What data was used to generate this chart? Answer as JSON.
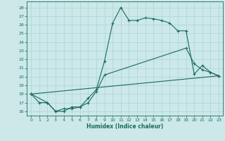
{
  "xlabel": "Humidex (Indice chaleur)",
  "bg_color": "#cce8e8",
  "line_color": "#1a6b5a",
  "grid_color": "#aad4d4",
  "ylim": [
    15.5,
    28.7
  ],
  "xlim": [
    -0.5,
    23.5
  ],
  "yticks": [
    16,
    17,
    18,
    19,
    20,
    21,
    22,
    23,
    24,
    25,
    26,
    27,
    28
  ],
  "xticks": [
    0,
    1,
    2,
    3,
    4,
    5,
    6,
    7,
    8,
    9,
    10,
    11,
    12,
    13,
    14,
    15,
    16,
    17,
    18,
    19,
    20,
    21,
    22,
    23
  ],
  "line1_x": [
    0,
    1,
    2,
    3,
    4,
    5,
    6,
    7,
    8,
    9,
    10,
    11,
    12,
    13,
    14,
    15,
    16,
    17,
    18,
    19,
    20,
    21,
    22,
    23
  ],
  "line1_y": [
    18,
    17,
    17,
    16,
    16,
    16.5,
    16.5,
    17.5,
    18.5,
    21.8,
    26.2,
    28,
    26.5,
    26.5,
    26.8,
    26.7,
    26.5,
    26.2,
    25.3,
    25.3,
    20.3,
    21.3,
    20.5,
    20.1
  ],
  "line2_x": [
    0,
    2,
    3,
    4,
    5,
    6,
    7,
    8,
    9,
    19,
    20,
    21,
    22,
    23
  ],
  "line2_y": [
    18,
    17,
    16,
    16.3,
    16.3,
    16.5,
    17.0,
    18.3,
    20.2,
    23.3,
    21.5,
    20.8,
    20.5,
    20.1
  ],
  "line3_x": [
    0,
    23
  ],
  "line3_y": [
    18,
    20.1
  ]
}
